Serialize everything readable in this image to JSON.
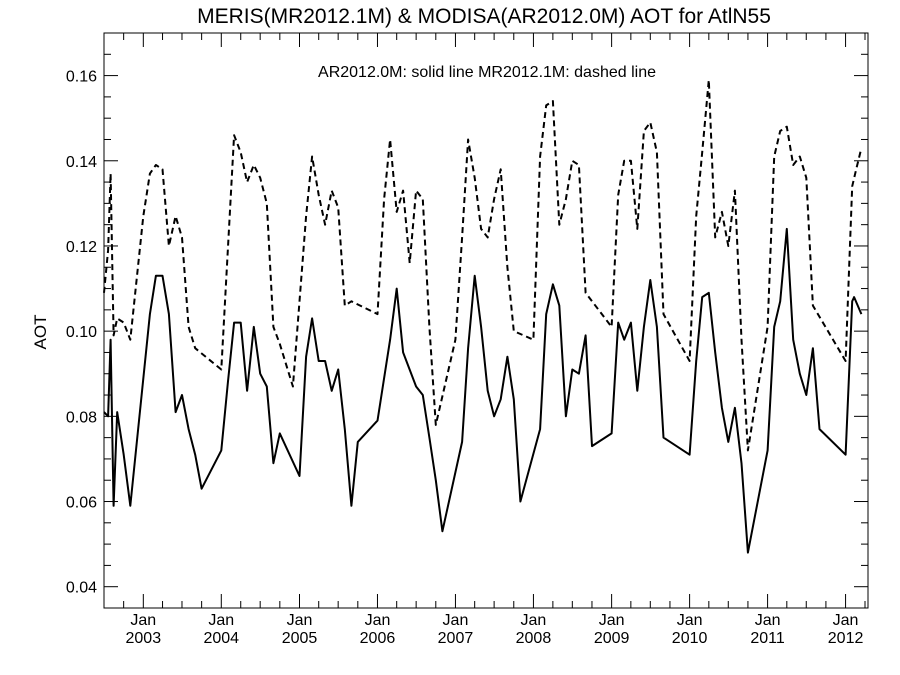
{
  "chart_data": {
    "type": "line",
    "title": "MERIS(MR2012.1M) & MODISA(AR2012.0M)  AOT for AtlN55",
    "annotation": "AR2012.0M: solid line   MR2012.1M: dashed line",
    "xlabel": "",
    "ylabel": "AOT",
    "xlim": [
      "2002-07-01",
      "2012-04-15"
    ],
    "ylim": [
      0.035,
      0.17
    ],
    "yticks": [
      "0.04",
      "0.06",
      "0.08",
      "0.10",
      "0.12",
      "0.14",
      "0.16"
    ],
    "xticks": [
      {
        "month": "Jan",
        "year": "2003"
      },
      {
        "month": "Jan",
        "year": "2004"
      },
      {
        "month": "Jan",
        "year": "2005"
      },
      {
        "month": "Jan",
        "year": "2006"
      },
      {
        "month": "Jan",
        "year": "2007"
      },
      {
        "month": "Jan",
        "year": "2008"
      },
      {
        "month": "Jan",
        "year": "2009"
      },
      {
        "month": "Jan",
        "year": "2010"
      },
      {
        "month": "Jan",
        "year": "2011"
      },
      {
        "month": "Jan",
        "year": "2012"
      }
    ],
    "grid": false,
    "series": [
      {
        "id": "AR2012.0M",
        "style": "solid",
        "color": "#000000",
        "points": [
          [
            "2002-07-01",
            0.081
          ],
          [
            "2002-07-20",
            0.08
          ],
          [
            "2002-08-01",
            0.098
          ],
          [
            "2002-08-15",
            0.059
          ],
          [
            "2002-09-01",
            0.081
          ],
          [
            "2002-10-01",
            0.071
          ],
          [
            "2002-11-01",
            0.059
          ],
          [
            "2003-02-01",
            0.104
          ],
          [
            "2003-03-01",
            0.113
          ],
          [
            "2003-04-01",
            0.113
          ],
          [
            "2003-05-01",
            0.104
          ],
          [
            "2003-06-01",
            0.081
          ],
          [
            "2003-07-01",
            0.085
          ],
          [
            "2003-08-01",
            0.077
          ],
          [
            "2003-09-01",
            0.071
          ],
          [
            "2003-10-01",
            0.063
          ],
          [
            "2004-01-01",
            0.072
          ],
          [
            "2004-02-01",
            0.088
          ],
          [
            "2004-03-01",
            0.102
          ],
          [
            "2004-04-01",
            0.102
          ],
          [
            "2004-05-01",
            0.086
          ],
          [
            "2004-06-01",
            0.101
          ],
          [
            "2004-07-01",
            0.09
          ],
          [
            "2004-08-01",
            0.087
          ],
          [
            "2004-09-01",
            0.069
          ],
          [
            "2004-10-01",
            0.076
          ],
          [
            "2005-01-01",
            0.066
          ],
          [
            "2005-02-01",
            0.094
          ],
          [
            "2005-03-01",
            0.103
          ],
          [
            "2005-04-01",
            0.093
          ],
          [
            "2005-05-01",
            0.093
          ],
          [
            "2005-06-01",
            0.086
          ],
          [
            "2005-07-01",
            0.091
          ],
          [
            "2005-08-01",
            0.077
          ],
          [
            "2005-09-01",
            0.059
          ],
          [
            "2005-10-01",
            0.074
          ],
          [
            "2006-01-01",
            0.079
          ],
          [
            "2006-03-01",
            0.098
          ],
          [
            "2006-04-01",
            0.11
          ],
          [
            "2006-05-01",
            0.095
          ],
          [
            "2006-07-01",
            0.087
          ],
          [
            "2006-08-01",
            0.085
          ],
          [
            "2006-09-01",
            0.075
          ],
          [
            "2006-10-01",
            0.065
          ],
          [
            "2006-11-01",
            0.053
          ],
          [
            "2007-02-01",
            0.074
          ],
          [
            "2007-03-01",
            0.096
          ],
          [
            "2007-04-01",
            0.113
          ],
          [
            "2007-05-01",
            0.101
          ],
          [
            "2007-06-01",
            0.086
          ],
          [
            "2007-07-01",
            0.08
          ],
          [
            "2007-08-01",
            0.084
          ],
          [
            "2007-09-01",
            0.094
          ],
          [
            "2007-10-01",
            0.084
          ],
          [
            "2007-11-01",
            0.06
          ],
          [
            "2008-02-01",
            0.077
          ],
          [
            "2008-03-01",
            0.104
          ],
          [
            "2008-04-01",
            0.111
          ],
          [
            "2008-05-01",
            0.106
          ],
          [
            "2008-06-01",
            0.08
          ],
          [
            "2008-07-01",
            0.091
          ],
          [
            "2008-08-01",
            0.09
          ],
          [
            "2008-09-01",
            0.099
          ],
          [
            "2008-10-01",
            0.073
          ],
          [
            "2009-01-01",
            0.076
          ],
          [
            "2009-02-01",
            0.102
          ],
          [
            "2009-03-01",
            0.098
          ],
          [
            "2009-04-01",
            0.102
          ],
          [
            "2009-05-01",
            0.086
          ],
          [
            "2009-06-01",
            0.101
          ],
          [
            "2009-07-01",
            0.112
          ],
          [
            "2009-08-01",
            0.101
          ],
          [
            "2009-09-01",
            0.075
          ],
          [
            "2010-01-01",
            0.071
          ],
          [
            "2010-02-01",
            0.093
          ],
          [
            "2010-03-01",
            0.108
          ],
          [
            "2010-04-01",
            0.109
          ],
          [
            "2010-05-01",
            0.095
          ],
          [
            "2010-06-01",
            0.082
          ],
          [
            "2010-07-01",
            0.074
          ],
          [
            "2010-08-01",
            0.082
          ],
          [
            "2010-09-01",
            0.069
          ],
          [
            "2010-10-01",
            0.048
          ],
          [
            "2011-01-01",
            0.072
          ],
          [
            "2011-02-01",
            0.101
          ],
          [
            "2011-03-01",
            0.107
          ],
          [
            "2011-04-01",
            0.124
          ],
          [
            "2011-05-01",
            0.098
          ],
          [
            "2011-06-01",
            0.09
          ],
          [
            "2011-07-01",
            0.085
          ],
          [
            "2011-08-01",
            0.096
          ],
          [
            "2011-09-01",
            0.077
          ],
          [
            "2012-01-01",
            0.071
          ],
          [
            "2012-02-01",
            0.107
          ],
          [
            "2012-02-10",
            0.108
          ],
          [
            "2012-03-15",
            0.104
          ]
        ]
      },
      {
        "id": "MR2012.1M",
        "style": "dashed",
        "color": "#000000",
        "points": [
          [
            "2002-07-01",
            0.109
          ],
          [
            "2002-07-20",
            0.119
          ],
          [
            "2002-08-01",
            0.137
          ],
          [
            "2002-08-15",
            0.099
          ],
          [
            "2002-09-01",
            0.103
          ],
          [
            "2002-10-01",
            0.102
          ],
          [
            "2002-11-01",
            0.098
          ],
          [
            "2003-01-01",
            0.127
          ],
          [
            "2003-02-01",
            0.137
          ],
          [
            "2003-03-01",
            0.139
          ],
          [
            "2003-04-01",
            0.138
          ],
          [
            "2003-05-01",
            0.12
          ],
          [
            "2003-06-01",
            0.127
          ],
          [
            "2003-07-01",
            0.122
          ],
          [
            "2003-08-01",
            0.101
          ],
          [
            "2003-09-01",
            0.096
          ],
          [
            "2004-01-01",
            0.091
          ],
          [
            "2004-03-01",
            0.146
          ],
          [
            "2004-04-01",
            0.142
          ],
          [
            "2004-05-01",
            0.135
          ],
          [
            "2004-06-01",
            0.139
          ],
          [
            "2004-07-01",
            0.136
          ],
          [
            "2004-08-01",
            0.13
          ],
          [
            "2004-09-01",
            0.101
          ],
          [
            "2004-10-01",
            0.097
          ],
          [
            "2004-12-01",
            0.087
          ],
          [
            "2005-02-01",
            0.127
          ],
          [
            "2005-03-01",
            0.141
          ],
          [
            "2005-04-01",
            0.132
          ],
          [
            "2005-05-01",
            0.125
          ],
          [
            "2005-06-01",
            0.133
          ],
          [
            "2005-07-01",
            0.129
          ],
          [
            "2005-08-01",
            0.106
          ],
          [
            "2005-09-01",
            0.107
          ],
          [
            "2006-01-01",
            0.104
          ],
          [
            "2006-02-01",
            0.131
          ],
          [
            "2006-03-01",
            0.145
          ],
          [
            "2006-04-01",
            0.128
          ],
          [
            "2006-05-01",
            0.133
          ],
          [
            "2006-06-01",
            0.116
          ],
          [
            "2006-07-01",
            0.133
          ],
          [
            "2006-08-01",
            0.131
          ],
          [
            "2006-09-01",
            0.101
          ],
          [
            "2006-10-01",
            0.078
          ],
          [
            "2007-01-01",
            0.098
          ],
          [
            "2007-02-01",
            0.122
          ],
          [
            "2007-03-01",
            0.145
          ],
          [
            "2007-04-01",
            0.136
          ],
          [
            "2007-05-01",
            0.124
          ],
          [
            "2007-06-01",
            0.122
          ],
          [
            "2007-07-01",
            0.131
          ],
          [
            "2007-08-01",
            0.138
          ],
          [
            "2007-09-01",
            0.115
          ],
          [
            "2007-10-01",
            0.1
          ],
          [
            "2008-01-01",
            0.098
          ],
          [
            "2008-02-01",
            0.141
          ],
          [
            "2008-03-01",
            0.153
          ],
          [
            "2008-04-01",
            0.154
          ],
          [
            "2008-05-01",
            0.125
          ],
          [
            "2008-06-01",
            0.131
          ],
          [
            "2008-07-01",
            0.14
          ],
          [
            "2008-08-01",
            0.139
          ],
          [
            "2008-09-01",
            0.109
          ],
          [
            "2009-01-01",
            0.101
          ],
          [
            "2009-02-01",
            0.132
          ],
          [
            "2009-03-01",
            0.14
          ],
          [
            "2009-04-01",
            0.14
          ],
          [
            "2009-05-01",
            0.124
          ],
          [
            "2009-06-01",
            0.147
          ],
          [
            "2009-07-01",
            0.149
          ],
          [
            "2009-08-01",
            0.142
          ],
          [
            "2009-09-01",
            0.104
          ],
          [
            "2010-01-01",
            0.093
          ],
          [
            "2010-02-01",
            0.127
          ],
          [
            "2010-03-01",
            0.142
          ],
          [
            "2010-04-01",
            0.159
          ],
          [
            "2010-05-01",
            0.122
          ],
          [
            "2010-06-01",
            0.128
          ],
          [
            "2010-07-01",
            0.12
          ],
          [
            "2010-08-01",
            0.133
          ],
          [
            "2010-09-01",
            0.098
          ],
          [
            "2010-10-01",
            0.072
          ],
          [
            "2011-01-01",
            0.101
          ],
          [
            "2011-02-01",
            0.141
          ],
          [
            "2011-03-01",
            0.147
          ],
          [
            "2011-04-01",
            0.148
          ],
          [
            "2011-05-01",
            0.139
          ],
          [
            "2011-06-01",
            0.141
          ],
          [
            "2011-07-01",
            0.136
          ],
          [
            "2011-08-01",
            0.106
          ],
          [
            "2012-01-01",
            0.093
          ],
          [
            "2012-02-01",
            0.134
          ],
          [
            "2012-02-20",
            0.138
          ],
          [
            "2012-03-15",
            0.143
          ]
        ]
      }
    ]
  }
}
